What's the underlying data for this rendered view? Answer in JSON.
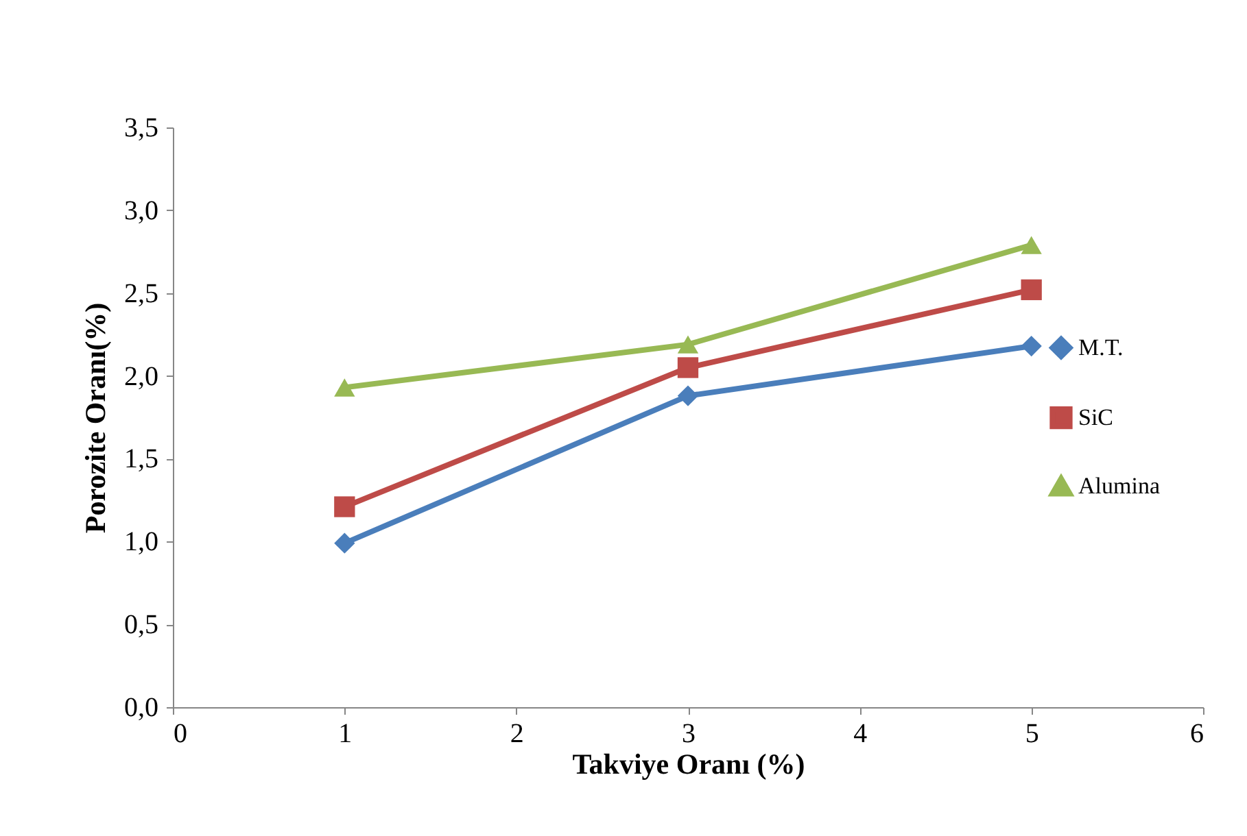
{
  "chart_data": {
    "type": "line",
    "xlabel": "Takviye Oranı (%)",
    "ylabel": "Porozite Oranı(%)",
    "x": [
      1,
      3,
      5
    ],
    "series": [
      {
        "name": "M.T.",
        "color": "#4a7ebb",
        "marker": "diamond",
        "values": [
          0.99,
          1.88,
          2.18
        ]
      },
      {
        "name": "SiC",
        "color": "#be4b48",
        "marker": "square",
        "values": [
          1.21,
          2.05,
          2.52
        ]
      },
      {
        "name": "Alumina",
        "color": "#98b954",
        "marker": "triangle",
        "values": [
          1.93,
          2.19,
          2.79
        ]
      }
    ],
    "xlim": [
      0,
      6
    ],
    "xticks": [
      0,
      1,
      2,
      3,
      4,
      5,
      6
    ],
    "ylim": [
      0,
      3.5
    ],
    "yticks": [
      {
        "value": 0,
        "label": "0,0"
      },
      {
        "value": 0.5,
        "label": "0,5"
      },
      {
        "value": 1,
        "label": "1,0"
      },
      {
        "value": 1.5,
        "label": "1,5"
      },
      {
        "value": 2,
        "label": "2,0"
      },
      {
        "value": 2.5,
        "label": "2,5"
      },
      {
        "value": 3,
        "label": "3,0"
      },
      {
        "value": 3.5,
        "label": "3,5"
      }
    ],
    "grid": false,
    "legend": "right"
  }
}
